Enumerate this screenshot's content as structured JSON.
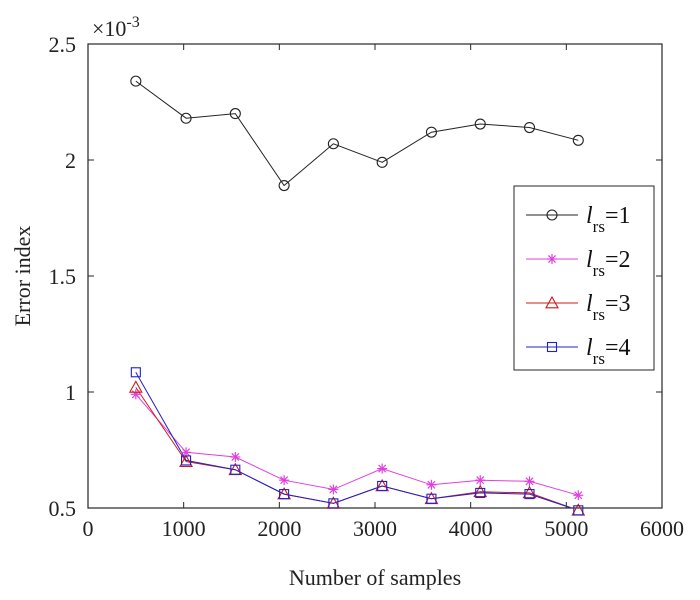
{
  "chart_data": {
    "type": "line",
    "xlabel": "Number of samples",
    "ylabel": "Error index",
    "exponent_label": "×10",
    "exponent_power": "-3",
    "xlim": [
      0,
      6000
    ],
    "ylim": [
      0.5,
      2.5
    ],
    "xticks": [
      0,
      1000,
      2000,
      3000,
      4000,
      5000,
      6000
    ],
    "xtick_labels": [
      "0",
      "1000",
      "2000",
      "3000",
      "4000",
      "5000",
      "6000"
    ],
    "yticks": [
      0.5,
      1,
      1.5,
      2,
      2.5
    ],
    "ytick_labels": [
      "0.5",
      "1",
      "1.5",
      "2",
      "2.5"
    ],
    "x": [
      500,
      1025,
      1540,
      2050,
      2565,
      3075,
      3590,
      4100,
      4615,
      5125
    ],
    "grid": false,
    "legend_position": "right",
    "series": [
      {
        "name": "lrs=1",
        "legend_var": "l",
        "legend_sub": "rs",
        "legend_val": "=1",
        "marker": "circle",
        "color": "#222222",
        "values": [
          2.34,
          2.18,
          2.2,
          1.89,
          2.07,
          1.99,
          2.12,
          2.155,
          2.14,
          2.085
        ]
      },
      {
        "name": "lrs=2",
        "legend_var": "l",
        "legend_sub": "rs",
        "legend_val": "=2",
        "marker": "star",
        "color": "#e040e0",
        "values": [
          0.99,
          0.74,
          0.72,
          0.62,
          0.58,
          0.67,
          0.6,
          0.62,
          0.615,
          0.555
        ]
      },
      {
        "name": "lrs=3",
        "legend_var": "l",
        "legend_sub": "rs",
        "legend_val": "=3",
        "marker": "triangle",
        "color": "#d01818",
        "values": [
          1.02,
          0.7,
          0.665,
          0.56,
          0.52,
          0.595,
          0.54,
          0.57,
          0.565,
          0.49
        ]
      },
      {
        "name": "lrs=4",
        "legend_var": "l",
        "legend_sub": "rs",
        "legend_val": "=4",
        "marker": "square",
        "color": "#2020cc",
        "values": [
          1.085,
          0.705,
          0.665,
          0.56,
          0.52,
          0.595,
          0.54,
          0.565,
          0.56,
          0.49
        ]
      }
    ]
  }
}
